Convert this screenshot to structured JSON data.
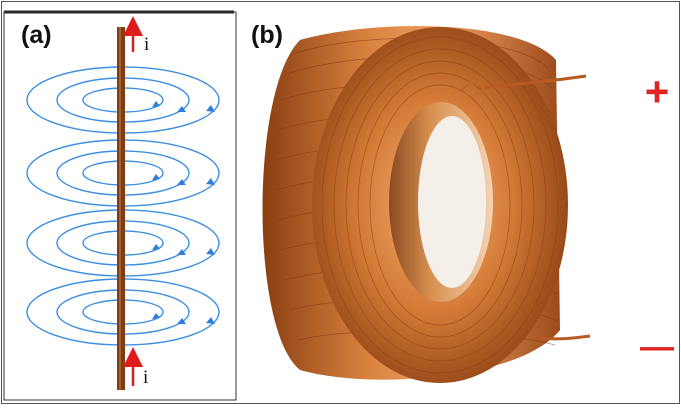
{
  "panel_a": {
    "label": "(a)",
    "current_symbol_top": "i",
    "current_symbol_bottom": "i",
    "wire_color": "#7a3f14",
    "field_line_color": "#3d8fe0",
    "current_arrow_color": "#e01b1b",
    "field_loop_count": 4
  },
  "panel_b": {
    "label": "(b)",
    "positive_terminal": "+",
    "negative_terminal": "—",
    "terminal_color": "#e02424",
    "coil_color": "#c46a2a",
    "coil_highlight_color": "#f3a467"
  }
}
